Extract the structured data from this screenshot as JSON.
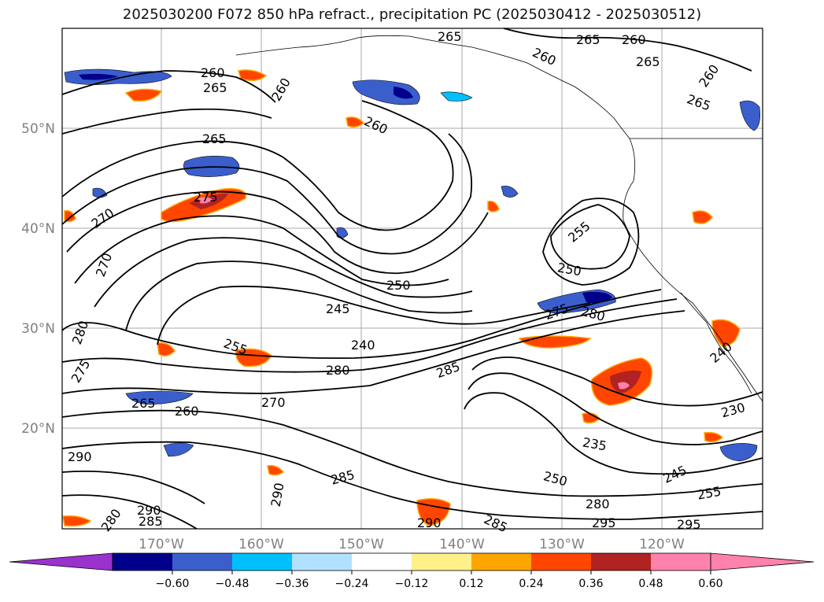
{
  "title": "2025030200 F072 850 hPa refract., precipitation PC (2025030412 - 2025030512)",
  "map": {
    "lat_labels": [
      "50°N",
      "40°N",
      "30°N",
      "20°N"
    ],
    "lon_labels": [
      "170°W",
      "160°W",
      "150°W",
      "140°W",
      "130°W",
      "120°W"
    ],
    "contour_labels": [
      "265",
      "260",
      "265",
      "260",
      "260",
      "265",
      "260",
      "265",
      "265",
      "260",
      "260",
      "265",
      "270",
      "270",
      "275",
      "255",
      "250",
      "250",
      "245",
      "240",
      "275",
      "280",
      "280",
      "285",
      "255",
      "230",
      "235",
      "245",
      "250",
      "255",
      "280",
      "295",
      "295",
      "285",
      "265",
      "260",
      "270",
      "290",
      "290",
      "280",
      "285",
      "290",
      "290",
      "285",
      "275",
      "280",
      "240"
    ]
  },
  "colorbar": {
    "ticks": [
      "−0.60",
      "−0.48",
      "−0.36",
      "−0.24",
      "−0.12",
      "0.12",
      "0.24",
      "0.36",
      "0.48",
      "0.60"
    ],
    "colors": {
      "under": "#9a32cd",
      "bins": [
        "#00008b",
        "#3a5fcd",
        "#00bfff",
        "#b0e2ff",
        "#ffffff",
        "#fff08a",
        "#ffa500",
        "#ff4500",
        "#b22222",
        "#ff82ab"
      ],
      "over": "#ff82ab"
    }
  }
}
